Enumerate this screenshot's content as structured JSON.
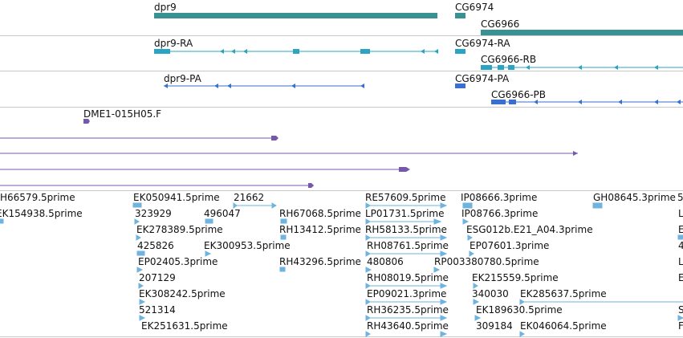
{
  "colors": {
    "gene": "#3a9193",
    "rna": "#2ba3c2",
    "protein": "#3a6fcf",
    "cdna": "#7658aa",
    "est": "#6fb3df",
    "separator": "#c8c8c8"
  },
  "tracks": {
    "genes": [
      {
        "label": "dpr9"
      },
      {
        "label": "CG6974"
      },
      {
        "label": "CG6966"
      }
    ],
    "transcripts": [
      {
        "label": "dpr9-RA"
      },
      {
        "label": "CG6974-RA"
      },
      {
        "label": "CG6966-RB"
      }
    ],
    "proteins": [
      {
        "label": "dpr9-PA"
      },
      {
        "label": "CG6974-PA"
      },
      {
        "label": "CG6966-PB"
      }
    ],
    "cdna": [
      {
        "label": "DME1-015H05.F"
      }
    ],
    "ests": [
      {
        "label": "H66579.5prime"
      },
      {
        "label": "EK050941.5prime"
      },
      {
        "label": "21662"
      },
      {
        "label": "RE57609.5prime"
      },
      {
        "label": "IP08666.3prime"
      },
      {
        "label": "GH08645.3prime"
      },
      {
        "label": "5"
      },
      {
        "label": "EK154938.5prime"
      },
      {
        "label": "323929"
      },
      {
        "label": "496047"
      },
      {
        "label": "RH67068.5prime"
      },
      {
        "label": "LP01731.5prime"
      },
      {
        "label": "IP08766.3prime"
      },
      {
        "label": "L"
      },
      {
        "label": "EK278389.5prime"
      },
      {
        "label": "RH13412.5prime"
      },
      {
        "label": "RH58133.5prime"
      },
      {
        "label": "ESG012b.E21_A04.3prime"
      },
      {
        "label": "E"
      },
      {
        "label": "425826"
      },
      {
        "label": "EK300953.5prime"
      },
      {
        "label": "RH08761.5prime"
      },
      {
        "label": "EP07601.3prime"
      },
      {
        "label": "4"
      },
      {
        "label": "EP02405.3prime"
      },
      {
        "label": "RH43296.5prime"
      },
      {
        "label": "480806"
      },
      {
        "label": "RP003380780.5prime"
      },
      {
        "label": "L"
      },
      {
        "label": "207129"
      },
      {
        "label": "RH08019.5prime"
      },
      {
        "label": "EK215559.5prime"
      },
      {
        "label": "E"
      },
      {
        "label": "EK308242.5prime"
      },
      {
        "label": "EP09021.3prime"
      },
      {
        "label": "340030"
      },
      {
        "label": "EK285637.5prime"
      },
      {
        "label": "521314"
      },
      {
        "label": "RH36235.5prime"
      },
      {
        "label": "EK189630.5prime"
      },
      {
        "label": "S"
      },
      {
        "label": "EK251631.5prime"
      },
      {
        "label": "RH43640.5prime"
      },
      {
        "label": "309184"
      },
      {
        "label": "EK046064.5prime"
      },
      {
        "label": "F"
      }
    ]
  }
}
